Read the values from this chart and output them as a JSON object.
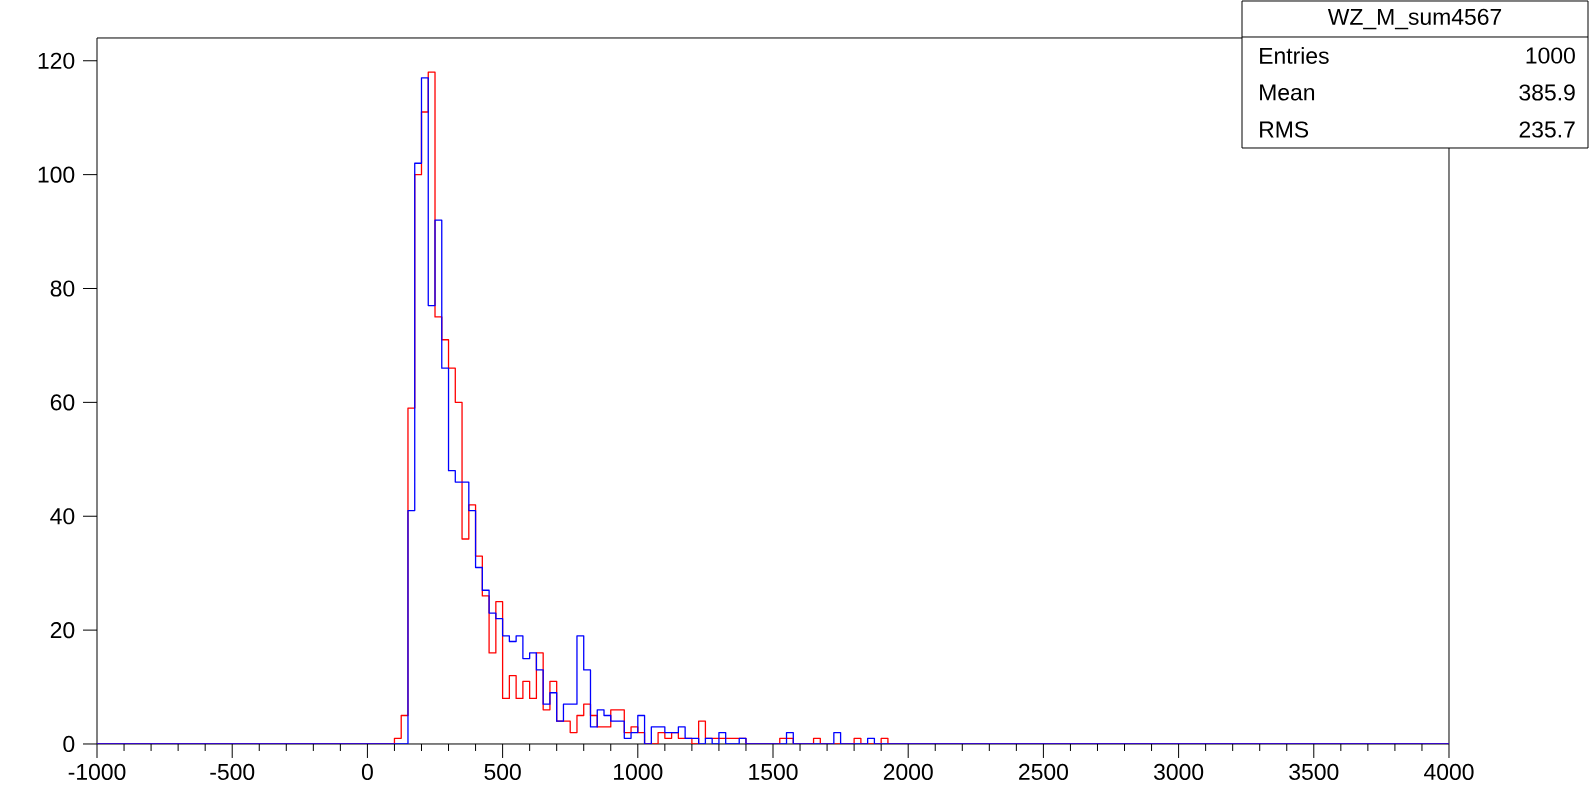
{
  "chart_data": {
    "type": "histogram",
    "title": "WZ_M_sum4567",
    "annotations": [
      "Entries",
      "1000",
      "Mean",
      "385.9",
      "RMS",
      "235.7"
    ],
    "bins": [
      -1000,
      100,
      125,
      150,
      175,
      200,
      225,
      250,
      275,
      300,
      325,
      350,
      375,
      400,
      425,
      450,
      475,
      500,
      525,
      550,
      575,
      600,
      625,
      650,
      675,
      700,
      725,
      750,
      775,
      800,
      825,
      850,
      875,
      900,
      925,
      950,
      975,
      1000,
      1025,
      1050,
      1075,
      1100,
      1125,
      1150,
      1175,
      1200,
      1225,
      1250,
      1275,
      1300,
      1325,
      1350,
      1375,
      1400,
      1425,
      1450,
      1475,
      1500,
      1525,
      1550,
      1575,
      1600,
      1625,
      1650,
      1675,
      1700,
      1725,
      1750,
      1775,
      1800,
      1825,
      1850,
      1875,
      1900,
      1925,
      1950,
      4000
    ],
    "series": [
      {
        "color": "#ff0000",
        "values": [
          0,
          1,
          5,
          59,
          100,
          111,
          118,
          75,
          71,
          66,
          60,
          36,
          42,
          33,
          26,
          16,
          25,
          8,
          12,
          8,
          11,
          8,
          16,
          6,
          11,
          4,
          4,
          2,
          5,
          7,
          5,
          3,
          3,
          6,
          6,
          2,
          3,
          2,
          0,
          0,
          2,
          1,
          2,
          1,
          1,
          0,
          4,
          1,
          1,
          1,
          1,
          1,
          1,
          0,
          0,
          0,
          0,
          0,
          1,
          1,
          0,
          0,
          0,
          1,
          0,
          0,
          0,
          0,
          0,
          1,
          0,
          0,
          0,
          1,
          0,
          0
        ]
      },
      {
        "color": "#0000ff",
        "values": [
          0,
          0,
          0,
          41,
          102,
          117,
          77,
          92,
          66,
          48,
          46,
          46,
          41,
          31,
          27,
          23,
          22,
          19,
          18,
          19,
          15,
          16,
          13,
          7,
          9,
          4,
          7,
          7,
          19,
          13,
          3,
          6,
          5,
          4,
          4,
          1,
          2,
          5,
          0,
          3,
          3,
          2,
          2,
          3,
          1,
          1,
          0,
          1,
          0,
          2,
          0,
          0,
          1,
          0,
          0,
          0,
          0,
          0,
          0,
          2,
          0,
          0,
          0,
          0,
          0,
          0,
          2,
          0,
          0,
          0,
          0,
          1,
          0,
          0,
          0,
          0
        ]
      }
    ],
    "xlim": [
      -1000,
      4000
    ],
    "ylim": [
      0,
      124
    ],
    "xticks": [
      -1000,
      -500,
      0,
      500,
      1000,
      1500,
      2000,
      2500,
      3000,
      3500,
      4000
    ],
    "yticks": [
      0,
      20,
      40,
      60,
      80,
      100,
      120
    ]
  }
}
